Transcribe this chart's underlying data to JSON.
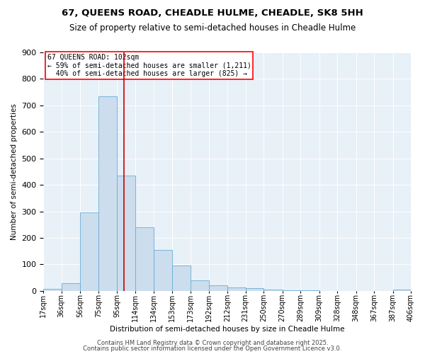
{
  "title": "67, QUEENS ROAD, CHEADLE HULME, CHEADLE, SK8 5HH",
  "subtitle": "Size of property relative to semi-detached houses in Cheadle Hulme",
  "xlabel": "Distribution of semi-detached houses by size in Cheadle Hulme",
  "ylabel": "Number of semi-detached properties",
  "bar_color": "#ccdded",
  "bar_edge_color": "#6aadd5",
  "background_color": "#e8f0f8",
  "annotation_text": "67 QUEENS ROAD: 102sqm\n← 59% of semi-detached houses are smaller (1,211)\n  40% of semi-detached houses are larger (825) →",
  "vline_x": 102,
  "vline_color": "#cc0000",
  "ylim": [
    0,
    900
  ],
  "bin_edges": [
    17,
    36,
    56,
    75,
    95,
    114,
    134,
    153,
    173,
    192,
    212,
    231,
    250,
    270,
    289,
    309,
    328,
    348,
    367,
    387,
    406
  ],
  "bin_labels": [
    "17sqm",
    "36sqm",
    "56sqm",
    "75sqm",
    "95sqm",
    "114sqm",
    "134sqm",
    "153sqm",
    "173sqm",
    "192sqm",
    "212sqm",
    "231sqm",
    "250sqm",
    "270sqm",
    "289sqm",
    "309sqm",
    "328sqm",
    "348sqm",
    "367sqm",
    "387sqm",
    "406sqm"
  ],
  "values": [
    8,
    30,
    295,
    735,
    435,
    240,
    155,
    97,
    40,
    20,
    12,
    10,
    5,
    3,
    2,
    1,
    1,
    1,
    1,
    5
  ],
  "footer_line1": "Contains HM Land Registry data © Crown copyright and database right 2025.",
  "footer_line2": "Contains public sector information licensed under the Open Government Licence v3.0.",
  "title_fontsize": 9.5,
  "subtitle_fontsize": 8.5,
  "annotation_fontsize": 7,
  "axis_label_fontsize": 7.5,
  "tick_fontsize": 7,
  "ytick_fontsize": 8
}
